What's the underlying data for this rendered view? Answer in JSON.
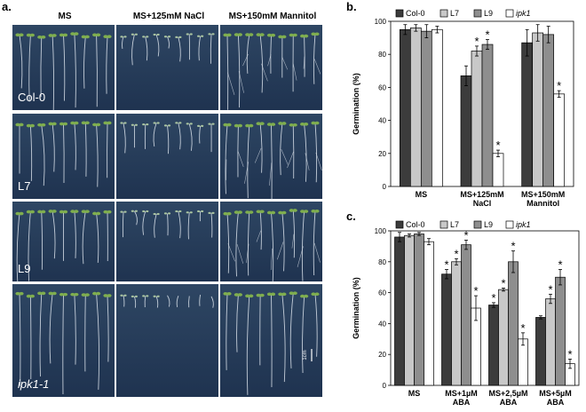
{
  "photo_panel": {
    "label": "a.",
    "columns": [
      "MS",
      "MS+125mM NaCl",
      "MS+150mM Mannitol"
    ],
    "rows": [
      "Col-0",
      "L7",
      "L9",
      "ipk1-1"
    ],
    "row_italic": [
      false,
      false,
      false,
      true
    ],
    "scale_bar_label": "1cm"
  },
  "chart_data": [
    {
      "type": "bar",
      "panel_label": "b.",
      "title": "",
      "xlabel": "",
      "ylabel": "Germination (%)",
      "ylim": [
        0,
        100
      ],
      "yticks": [
        0,
        20,
        40,
        60,
        80,
        100
      ],
      "legend_position": "top",
      "categories": [
        [
          "MS"
        ],
        [
          "MS+125mM",
          "NaCl"
        ],
        [
          "MS+150mM",
          "Mannitol"
        ]
      ],
      "series": [
        {
          "name": "Col-0",
          "color": "#3c3c3c",
          "values": [
            95,
            67,
            87
          ],
          "errors": [
            3,
            6,
            8
          ],
          "significant": [
            false,
            false,
            false
          ]
        },
        {
          "name": "L7",
          "color": "#c8c8c8",
          "values": [
            96,
            82,
            93
          ],
          "errors": [
            2,
            3,
            5
          ],
          "significant": [
            false,
            true,
            false
          ]
        },
        {
          "name": "L9",
          "color": "#8e8e8e",
          "values": [
            94,
            86,
            92
          ],
          "errors": [
            4,
            3,
            5
          ],
          "significant": [
            false,
            true,
            false
          ]
        },
        {
          "name": "ipk1",
          "color": "#ffffff",
          "values": [
            95,
            20,
            56
          ],
          "errors": [
            2,
            2,
            2
          ],
          "significant": [
            false,
            true,
            true
          ]
        }
      ],
      "star": "*"
    },
    {
      "type": "bar",
      "panel_label": "c.",
      "title": "",
      "xlabel": "",
      "ylabel": "Germination (%)",
      "ylim": [
        0,
        100
      ],
      "yticks": [
        0,
        20,
        40,
        60,
        80,
        100
      ],
      "legend_position": "top",
      "categories": [
        [
          "MS"
        ],
        [
          "MS+1µM",
          "ABA"
        ],
        [
          "MS+2,5µM",
          "ABA"
        ],
        [
          "MS+5µM",
          "ABA"
        ]
      ],
      "series": [
        {
          "name": "Col-0",
          "color": "#3c3c3c",
          "values": [
            96,
            72,
            52,
            44
          ],
          "errors": [
            3,
            3,
            1.5,
            1
          ],
          "significant": [
            false,
            true,
            true,
            false
          ]
        },
        {
          "name": "L7",
          "color": "#c8c8c8",
          "values": [
            97,
            80,
            62,
            56
          ],
          "errors": [
            1,
            2,
            1,
            3
          ],
          "significant": [
            false,
            true,
            true,
            true
          ]
        },
        {
          "name": "L9",
          "color": "#8e8e8e",
          "values": [
            98,
            91,
            80,
            70
          ],
          "errors": [
            1,
            3,
            7,
            5
          ],
          "significant": [
            false,
            true,
            true,
            true
          ]
        },
        {
          "name": "ipk1",
          "color": "#ffffff",
          "values": [
            93,
            50,
            30,
            14
          ],
          "errors": [
            2,
            8,
            4,
            3
          ],
          "significant": [
            false,
            true,
            true,
            true
          ]
        }
      ],
      "star": "*"
    }
  ]
}
